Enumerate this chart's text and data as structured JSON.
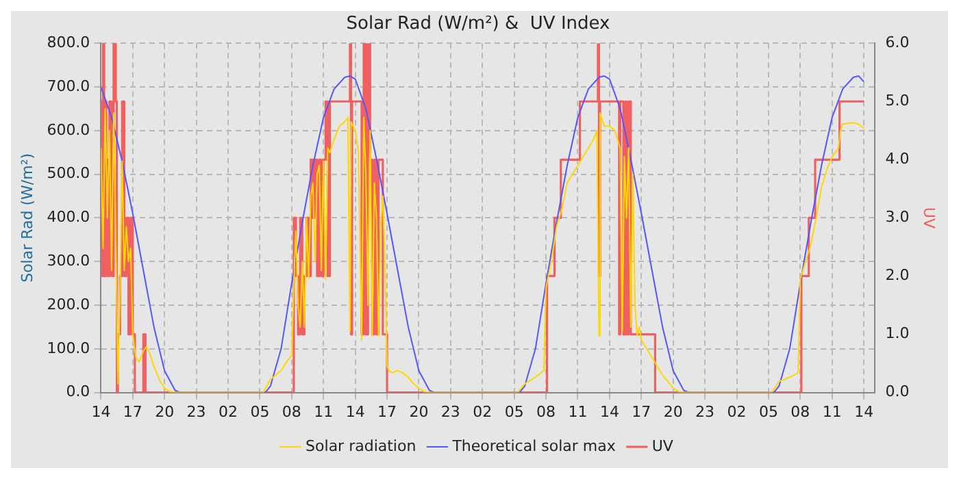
{
  "chart_data": {
    "type": "line",
    "title": "Solar Rad (W/m²) &  UV Index",
    "ylabel": "Solar Rad (W/m²)",
    "y2label": "UV",
    "xlim": [
      "--01-01T14:00",
      "--01-04T15:00"
    ],
    "xticks": [
      {
        "value": "--01-01T14:00",
        "label": "14"
      },
      {
        "value": "--01-01T17:00",
        "label": "17"
      },
      {
        "value": "--01-01T20:00",
        "label": "20"
      },
      {
        "value": "--01-01T23:00",
        "label": "23"
      },
      {
        "value": "--01-02T02:00",
        "label": "02"
      },
      {
        "value": "--01-02T05:00",
        "label": "05"
      },
      {
        "value": "--01-02T08:00",
        "label": "08"
      },
      {
        "value": "--01-02T11:00",
        "label": "11"
      },
      {
        "value": "--01-02T14:00",
        "label": "14"
      },
      {
        "value": "--01-02T17:00",
        "label": "17"
      },
      {
        "value": "--01-02T20:00",
        "label": "20"
      },
      {
        "value": "--01-02T23:00",
        "label": "23"
      },
      {
        "value": "--01-03T02:00",
        "label": "02"
      },
      {
        "value": "--01-03T05:00",
        "label": "05"
      },
      {
        "value": "--01-03T08:00",
        "label": "08"
      },
      {
        "value": "--01-03T11:00",
        "label": "11"
      },
      {
        "value": "--01-03T14:00",
        "label": "14"
      },
      {
        "value": "--01-03T17:00",
        "label": "17"
      },
      {
        "value": "--01-03T20:00",
        "label": "20"
      },
      {
        "value": "--01-03T23:00",
        "label": "23"
      },
      {
        "value": "--01-04T02:00",
        "label": "02"
      },
      {
        "value": "--01-04T05:00",
        "label": "05"
      },
      {
        "value": "--01-04T08:00",
        "label": "08"
      },
      {
        "value": "--01-04T11:00",
        "label": "11"
      },
      {
        "value": "--01-04T14:00",
        "label": "14"
      }
    ],
    "ylim": [
      0,
      800
    ],
    "yticks": [
      {
        "value": 0,
        "label": "0.0"
      },
      {
        "value": 100,
        "label": "100.0"
      },
      {
        "value": 200,
        "label": "200.0"
      },
      {
        "value": 300,
        "label": "300.0"
      },
      {
        "value": 400,
        "label": "400.0"
      },
      {
        "value": 500,
        "label": "500.0"
      },
      {
        "value": 600,
        "label": "600.0"
      },
      {
        "value": 700,
        "label": "700.0"
      },
      {
        "value": 800,
        "label": "800.0"
      }
    ],
    "y2lim": [
      0,
      6
    ],
    "y2ticks": [
      {
        "value": 0,
        "label": "0.0"
      },
      {
        "value": 1,
        "label": "1.0"
      },
      {
        "value": 2,
        "label": "2.0"
      },
      {
        "value": 3,
        "label": "3.0"
      },
      {
        "value": 4,
        "label": "4.0"
      },
      {
        "value": 5,
        "label": "5.0"
      },
      {
        "value": 6,
        "label": "6.0"
      }
    ],
    "grid": true,
    "legend": "bottom",
    "marker": "none",
    "series": [
      {
        "name": "Solar radiation",
        "color": "#ffd700",
        "x": [
          "--01-01T14:00",
          "--01-01T14:12",
          "--01-01T14:24",
          "--01-01T14:36",
          "--01-01T14:48",
          "--01-01T15:00",
          "--01-01T15:12",
          "--01-01T15:24",
          "--01-01T15:36",
          "--01-01T15:48",
          "--01-01T16:00",
          "--01-01T16:12",
          "--01-01T16:24",
          "--01-01T16:36",
          "--01-01T16:48",
          "--01-01T17:00",
          "--01-01T17:18",
          "--01-01T17:36",
          "--01-01T18:00",
          "--01-01T18:18",
          "--01-01T18:36",
          "--01-01T19:00",
          "--01-01T19:30",
          "--01-01T20:00",
          "--01-01T20:30",
          "--01-01T21:00",
          "--01-02T05:18",
          "--01-02T06:00",
          "--01-02T07:00",
          "--01-02T07:30",
          "--01-02T08:00",
          "--01-02T08:12",
          "--01-02T08:24",
          "--01-02T08:36",
          "--01-02T08:48",
          "--01-02T09:00",
          "--01-02T09:12",
          "--01-02T09:24",
          "--01-02T09:36",
          "--01-02T09:48",
          "--01-02T10:00",
          "--01-02T10:12",
          "--01-02T10:24",
          "--01-02T10:36",
          "--01-02T10:48",
          "--01-02T11:00",
          "--01-02T11:12",
          "--01-02T11:24",
          "--01-02T11:36",
          "--01-02T12:00",
          "--01-02T12:30",
          "--01-02T13:00",
          "--01-02T13:18",
          "--01-02T13:30",
          "--01-02T13:36",
          "--01-02T14:00",
          "--01-02T14:18",
          "--01-02T14:36",
          "--01-02T14:48",
          "--01-02T15:00",
          "--01-02T15:12",
          "--01-02T15:24",
          "--01-02T15:36",
          "--01-02T15:48",
          "--01-02T16:00",
          "--01-02T16:12",
          "--01-02T16:24",
          "--01-02T16:36",
          "--01-02T16:48",
          "--01-02T17:00",
          "--01-02T17:12",
          "--01-02T17:30",
          "--01-02T18:00",
          "--01-02T18:30",
          "--01-02T19:00",
          "--01-02T19:30",
          "--01-02T20:00",
          "--01-02T20:30",
          "--01-02T21:00",
          "--01-03T05:18",
          "--01-03T06:00",
          "--01-03T07:00",
          "--01-03T07:48",
          "--01-03T08:00",
          "--01-03T08:30",
          "--01-03T09:00",
          "--01-03T09:30",
          "--01-03T10:00",
          "--01-03T11:00",
          "--01-03T12:00",
          "--01-03T12:30",
          "--01-03T12:48",
          "--01-03T13:00",
          "--01-03T13:06",
          "--01-03T13:30",
          "--01-03T14:00",
          "--01-03T14:30",
          "--01-03T15:00",
          "--01-03T15:12",
          "--01-03T15:24",
          "--01-03T15:36",
          "--01-03T15:48",
          "--01-03T16:00",
          "--01-03T16:12",
          "--01-03T16:24",
          "--01-03T16:36",
          "--01-03T16:48",
          "--01-03T17:00",
          "--01-03T17:30",
          "--01-03T18:00",
          "--01-03T18:30",
          "--01-03T19:00",
          "--01-03T19:30",
          "--01-03T20:00",
          "--01-03T20:30",
          "--01-03T21:00",
          "--01-04T05:18",
          "--01-04T06:00",
          "--01-04T07:00",
          "--01-04T07:48",
          "--01-04T08:00",
          "--01-04T08:30",
          "--01-04T09:00",
          "--01-04T09:30",
          "--01-04T10:00",
          "--01-04T10:30",
          "--01-04T11:00",
          "--01-04T11:36",
          "--01-04T11:48",
          "--01-04T12:00",
          "--01-04T13:00",
          "--01-04T13:30",
          "--01-04T14:00"
        ],
        "values": [
          560,
          330,
          650,
          400,
          600,
          280,
          640,
          350,
          20,
          230,
          530,
          280,
          380,
          300,
          330,
          130,
          80,
          70,
          95,
          105,
          90,
          60,
          30,
          10,
          2,
          0,
          0,
          30,
          50,
          70,
          85,
          250,
          370,
          200,
          150,
          300,
          150,
          400,
          260,
          450,
          480,
          300,
          500,
          520,
          280,
          530,
          260,
          560,
          550,
          580,
          610,
          620,
          630,
          140,
          620,
          600,
          550,
          120,
          630,
          500,
          200,
          600,
          130,
          480,
          400,
          130,
          380,
          450,
          300,
          60,
          50,
          45,
          50,
          45,
          35,
          20,
          10,
          2,
          0,
          0,
          20,
          35,
          50,
          240,
          300,
          380,
          420,
          480,
          520,
          560,
          580,
          600,
          130,
          640,
          610,
          610,
          600,
          560,
          140,
          540,
          400,
          560,
          150,
          500,
          200,
          130,
          150,
          120,
          100,
          80,
          60,
          40,
          25,
          10,
          2,
          0,
          0,
          25,
          35,
          45,
          260,
          300,
          340,
          400,
          470,
          510,
          540,
          560,
          600,
          615,
          618,
          615,
          605
        ]
      },
      {
        "name": "Theoretical solar max",
        "color": "#5555ff",
        "x": [
          "--01-01T14:00",
          "--01-01T15:00",
          "--01-01T16:00",
          "--01-01T17:00",
          "--01-01T18:00",
          "--01-01T19:00",
          "--01-01T20:00",
          "--01-01T21:00",
          "--01-01T21:30",
          "--01-02T05:30",
          "--01-02T06:00",
          "--01-02T07:00",
          "--01-02T08:00",
          "--01-02T09:00",
          "--01-02T10:00",
          "--01-02T11:00",
          "--01-02T12:00",
          "--01-02T13:00",
          "--01-02T13:30",
          "--01-02T14:00",
          "--01-02T15:00",
          "--01-02T16:00",
          "--01-02T17:00",
          "--01-02T18:00",
          "--01-02T19:00",
          "--01-02T20:00",
          "--01-02T21:00",
          "--01-02T21:30",
          "--01-03T05:30",
          "--01-03T06:00",
          "--01-03T07:00",
          "--01-03T08:00",
          "--01-03T09:00",
          "--01-03T10:00",
          "--01-03T11:00",
          "--01-03T12:00",
          "--01-03T13:00",
          "--01-03T13:30",
          "--01-03T14:00",
          "--01-03T15:00",
          "--01-03T16:00",
          "--01-03T17:00",
          "--01-03T18:00",
          "--01-03T19:00",
          "--01-03T20:00",
          "--01-03T21:00",
          "--01-03T21:30",
          "--01-04T05:30",
          "--01-04T06:00",
          "--01-04T07:00",
          "--01-04T08:00",
          "--01-04T09:00",
          "--01-04T10:00",
          "--01-04T11:00",
          "--01-04T12:00",
          "--01-04T13:00",
          "--01-04T13:30",
          "--01-04T14:00"
        ],
        "values": [
          700,
          630,
          530,
          410,
          280,
          150,
          50,
          5,
          0,
          0,
          15,
          100,
          250,
          390,
          520,
          630,
          695,
          722,
          725,
          718,
          650,
          535,
          410,
          280,
          150,
          50,
          5,
          0,
          0,
          15,
          100,
          250,
          390,
          520,
          630,
          695,
          722,
          725,
          718,
          650,
          535,
          410,
          280,
          150,
          50,
          5,
          0,
          0,
          15,
          100,
          250,
          390,
          520,
          630,
          695,
          722,
          725,
          712
        ]
      },
      {
        "name": "UV",
        "type": "step",
        "axis": "y2",
        "color": "#f06060",
        "x": [
          "--01-01T14:00",
          "--01-01T14:06",
          "--01-01T14:12",
          "--01-01T14:18",
          "--01-01T14:24",
          "--01-01T14:30",
          "--01-01T14:36",
          "--01-01T14:48",
          "--01-01T15:00",
          "--01-01T15:12",
          "--01-01T15:24",
          "--01-01T15:30",
          "--01-01T15:36",
          "--01-01T15:48",
          "--01-01T16:00",
          "--01-01T16:12",
          "--01-01T16:24",
          "--01-01T16:36",
          "--01-01T16:48",
          "--01-01T17:00",
          "--01-01T17:12",
          "--01-01T18:00",
          "--01-01T18:12",
          "--01-02T08:00",
          "--01-02T08:12",
          "--01-02T08:24",
          "--01-02T08:36",
          "--01-02T08:48",
          "--01-02T09:00",
          "--01-02T09:12",
          "--01-02T09:24",
          "--01-02T09:36",
          "--01-02T09:48",
          "--01-02T10:00",
          "--01-02T10:12",
          "--01-02T10:24",
          "--01-02T10:36",
          "--01-02T10:48",
          "--01-02T11:00",
          "--01-02T11:12",
          "--01-02T11:24",
          "--01-02T11:36",
          "--01-02T13:30",
          "--01-02T13:36",
          "--01-02T13:42",
          "--01-02T14:36",
          "--01-02T14:48",
          "--01-02T15:00",
          "--01-02T15:12",
          "--01-02T15:24",
          "--01-02T15:36",
          "--01-02T15:48",
          "--01-02T16:00",
          "--01-02T16:12",
          "--01-02T16:36",
          "--01-02T17:00",
          "--01-03T08:06",
          "--01-03T08:48",
          "--01-03T09:24",
          "--01-03T11:12",
          "--01-03T12:54",
          "--01-03T13:00",
          "--01-03T13:06",
          "--01-03T14:54",
          "--01-03T15:00",
          "--01-03T15:18",
          "--01-03T15:30",
          "--01-03T15:36",
          "--01-03T15:48",
          "--01-03T16:00",
          "--01-03T18:18",
          "--01-04T08:06",
          "--01-04T08:48",
          "--01-04T09:24",
          "--01-04T11:42",
          "--01-04T14:00"
        ],
        "values": [
          5,
          2,
          6,
          2,
          5,
          4,
          2,
          5,
          2,
          6,
          5,
          0,
          1,
          2,
          5,
          2,
          3,
          1,
          3,
          1,
          0,
          1,
          0,
          0,
          3,
          2,
          1,
          3,
          1,
          2,
          3,
          2,
          4,
          3,
          4,
          2,
          4,
          2,
          4,
          5,
          2,
          5,
          6,
          1,
          5,
          1,
          6,
          1,
          6,
          4,
          1,
          4,
          1,
          4,
          1,
          0,
          2,
          3,
          4,
          5,
          6,
          2,
          5,
          1,
          5,
          1,
          5,
          1,
          5,
          1,
          0,
          2,
          3,
          4,
          5,
          5
        ]
      }
    ]
  }
}
